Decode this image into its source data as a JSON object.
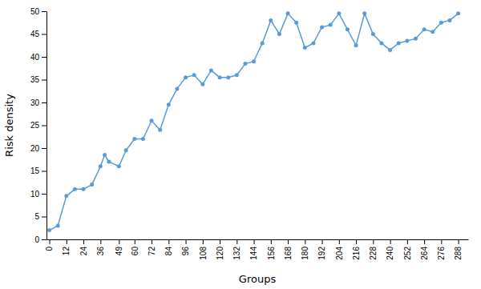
{
  "chart_data": {
    "type": "line",
    "x": [
      0,
      6,
      12,
      18,
      24,
      30,
      36,
      39,
      42,
      49,
      54,
      60,
      66,
      72,
      78,
      84,
      90,
      96,
      102,
      108,
      114,
      120,
      126,
      132,
      138,
      144,
      150,
      156,
      162,
      168,
      174,
      180,
      186,
      192,
      198,
      204,
      210,
      216,
      222,
      228,
      234,
      240,
      246,
      252,
      258,
      264,
      270,
      276,
      282,
      288
    ],
    "values": [
      2,
      3,
      9.5,
      11,
      11,
      12,
      16,
      18.5,
      17,
      16,
      19.5,
      22,
      22,
      26,
      24,
      29.5,
      33,
      35.5,
      36,
      34,
      37,
      35.5,
      35.5,
      36,
      38.5,
      39,
      43,
      48,
      45,
      49.5,
      47.5,
      42,
      43,
      46.5,
      47,
      49.5,
      46,
      42.5,
      49.5,
      45,
      43,
      41.5,
      43,
      43.5,
      44,
      46,
      45.5,
      47.5,
      48,
      49.5
    ],
    "color": "#5B9BD5",
    "marker": "circle",
    "xlabel": "Groups",
    "ylabel": "Risk density",
    "xlim": [
      -2,
      295
    ],
    "ylim": [
      0,
      50
    ],
    "xticks": [
      0,
      12,
      24,
      36,
      49,
      60,
      72,
      84,
      96,
      108,
      120,
      132,
      144,
      156,
      168,
      180,
      192,
      204,
      216,
      228,
      240,
      252,
      264,
      276,
      288
    ],
    "yticks": [
      0,
      5,
      10,
      15,
      20,
      25,
      30,
      35,
      40,
      45,
      50
    ],
    "grid": false
  }
}
